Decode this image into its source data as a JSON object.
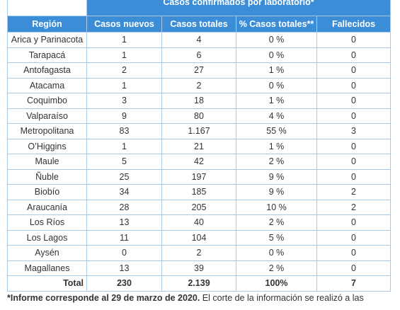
{
  "table": {
    "title": "Casos confirmados por laboratorio*",
    "headers": [
      "Región",
      "Casos nuevos",
      "Casos totales",
      "% Casos totales**",
      "Fallecidos"
    ],
    "rows": [
      [
        "Arica y Parinacota",
        "1",
        "4",
        "0 %",
        "0"
      ],
      [
        "Tarapacá",
        "1",
        "6",
        "0 %",
        "0"
      ],
      [
        "Antofagasta",
        "2",
        "27",
        "1 %",
        "0"
      ],
      [
        "Atacama",
        "1",
        "2",
        "0 %",
        "0"
      ],
      [
        "Coquimbo",
        "3",
        "18",
        "1 %",
        "0"
      ],
      [
        "Valparaíso",
        "9",
        "80",
        "4 %",
        "0"
      ],
      [
        "Metropolitana",
        "83",
        "1.167",
        "55 %",
        "3"
      ],
      [
        "O’Higgins",
        "1",
        "21",
        "1 %",
        "0"
      ],
      [
        "Maule",
        "5",
        "42",
        "2 %",
        "0"
      ],
      [
        "Ñuble",
        "25",
        "197",
        "9 %",
        "0"
      ],
      [
        "Biobío",
        "34",
        "185",
        "9 %",
        "2"
      ],
      [
        "Araucanía",
        "28",
        "205",
        "10 %",
        "2"
      ],
      [
        "Los Ríos",
        "13",
        "40",
        "2 %",
        "0"
      ],
      [
        "Los Lagos",
        "11",
        "104",
        "5 %",
        "0"
      ],
      [
        "Aysén",
        "0",
        "2",
        "0 %",
        "0"
      ],
      [
        "Magallanes",
        "13",
        "39",
        "2 %",
        "0"
      ]
    ],
    "total": [
      "Total",
      "230",
      "2.139",
      "100%",
      "7"
    ]
  },
  "footnote": {
    "bold": "*Informe corresponde al 29 de marzo de 2020.",
    "text": " El corte de la información se realizó a las"
  }
}
